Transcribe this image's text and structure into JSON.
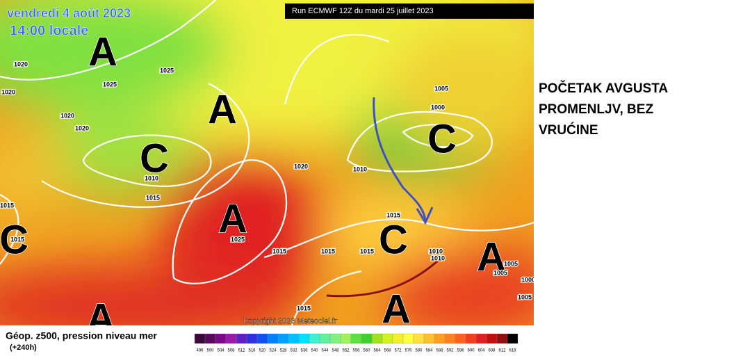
{
  "header": {
    "date": "vendredi 4 août 2023",
    "time": "14:00 locale",
    "run": "Run ECMWF 12Z du mardi 25 juillet 2023",
    "copyright": "Copyright 2023 Meteociel.fr"
  },
  "note": {
    "lines": [
      "POČETAK AVGUSTA",
      "PROMENLJV, BEZ",
      "VRUĆINE"
    ]
  },
  "map": {
    "systems": [
      "A",
      "A",
      "C",
      "A",
      "C",
      "A",
      "C",
      "C",
      "A",
      "A"
    ],
    "isobar_labels": [
      "1020",
      "1025",
      "1025",
      "1020",
      "1020",
      "1020",
      "1010",
      "1015",
      "1015",
      "1015",
      "1025",
      "1020",
      "1010",
      "1005",
      "1000",
      "1015",
      "1015",
      "1015",
      "1015",
      "1010",
      "1010",
      "1005",
      "1005",
      "1000",
      "1005",
      "1015"
    ]
  },
  "legend": {
    "title": "Géop. z500, pression niveau mer",
    "subtitle": "(+240h)",
    "labels": [
      "496",
      "500",
      "504",
      "508",
      "512",
      "516",
      "520",
      "524",
      "528",
      "532",
      "536",
      "540",
      "544",
      "548",
      "552",
      "556",
      "560",
      "564",
      "568",
      "572",
      "576",
      "580",
      "584",
      "588",
      "592",
      "596",
      "600",
      "604",
      "608",
      "612",
      "616"
    ],
    "colors": [
      "#3a0a3a",
      "#5a0a5a",
      "#7a0a8a",
      "#9a1aaa",
      "#6020c0",
      "#3030e0",
      "#1050f0",
      "#0080ff",
      "#00a0ff",
      "#00c0ff",
      "#00e0ff",
      "#40f0d0",
      "#60f0a0",
      "#80f080",
      "#a0f060",
      "#60e040",
      "#40d030",
      "#a0e020",
      "#d0f020",
      "#f0f030",
      "#ffff40",
      "#ffe040",
      "#ffc030",
      "#ffa020",
      "#ff8020",
      "#ff6020",
      "#f04020",
      "#e02020",
      "#c01010",
      "#901010",
      "#000000"
    ]
  }
}
